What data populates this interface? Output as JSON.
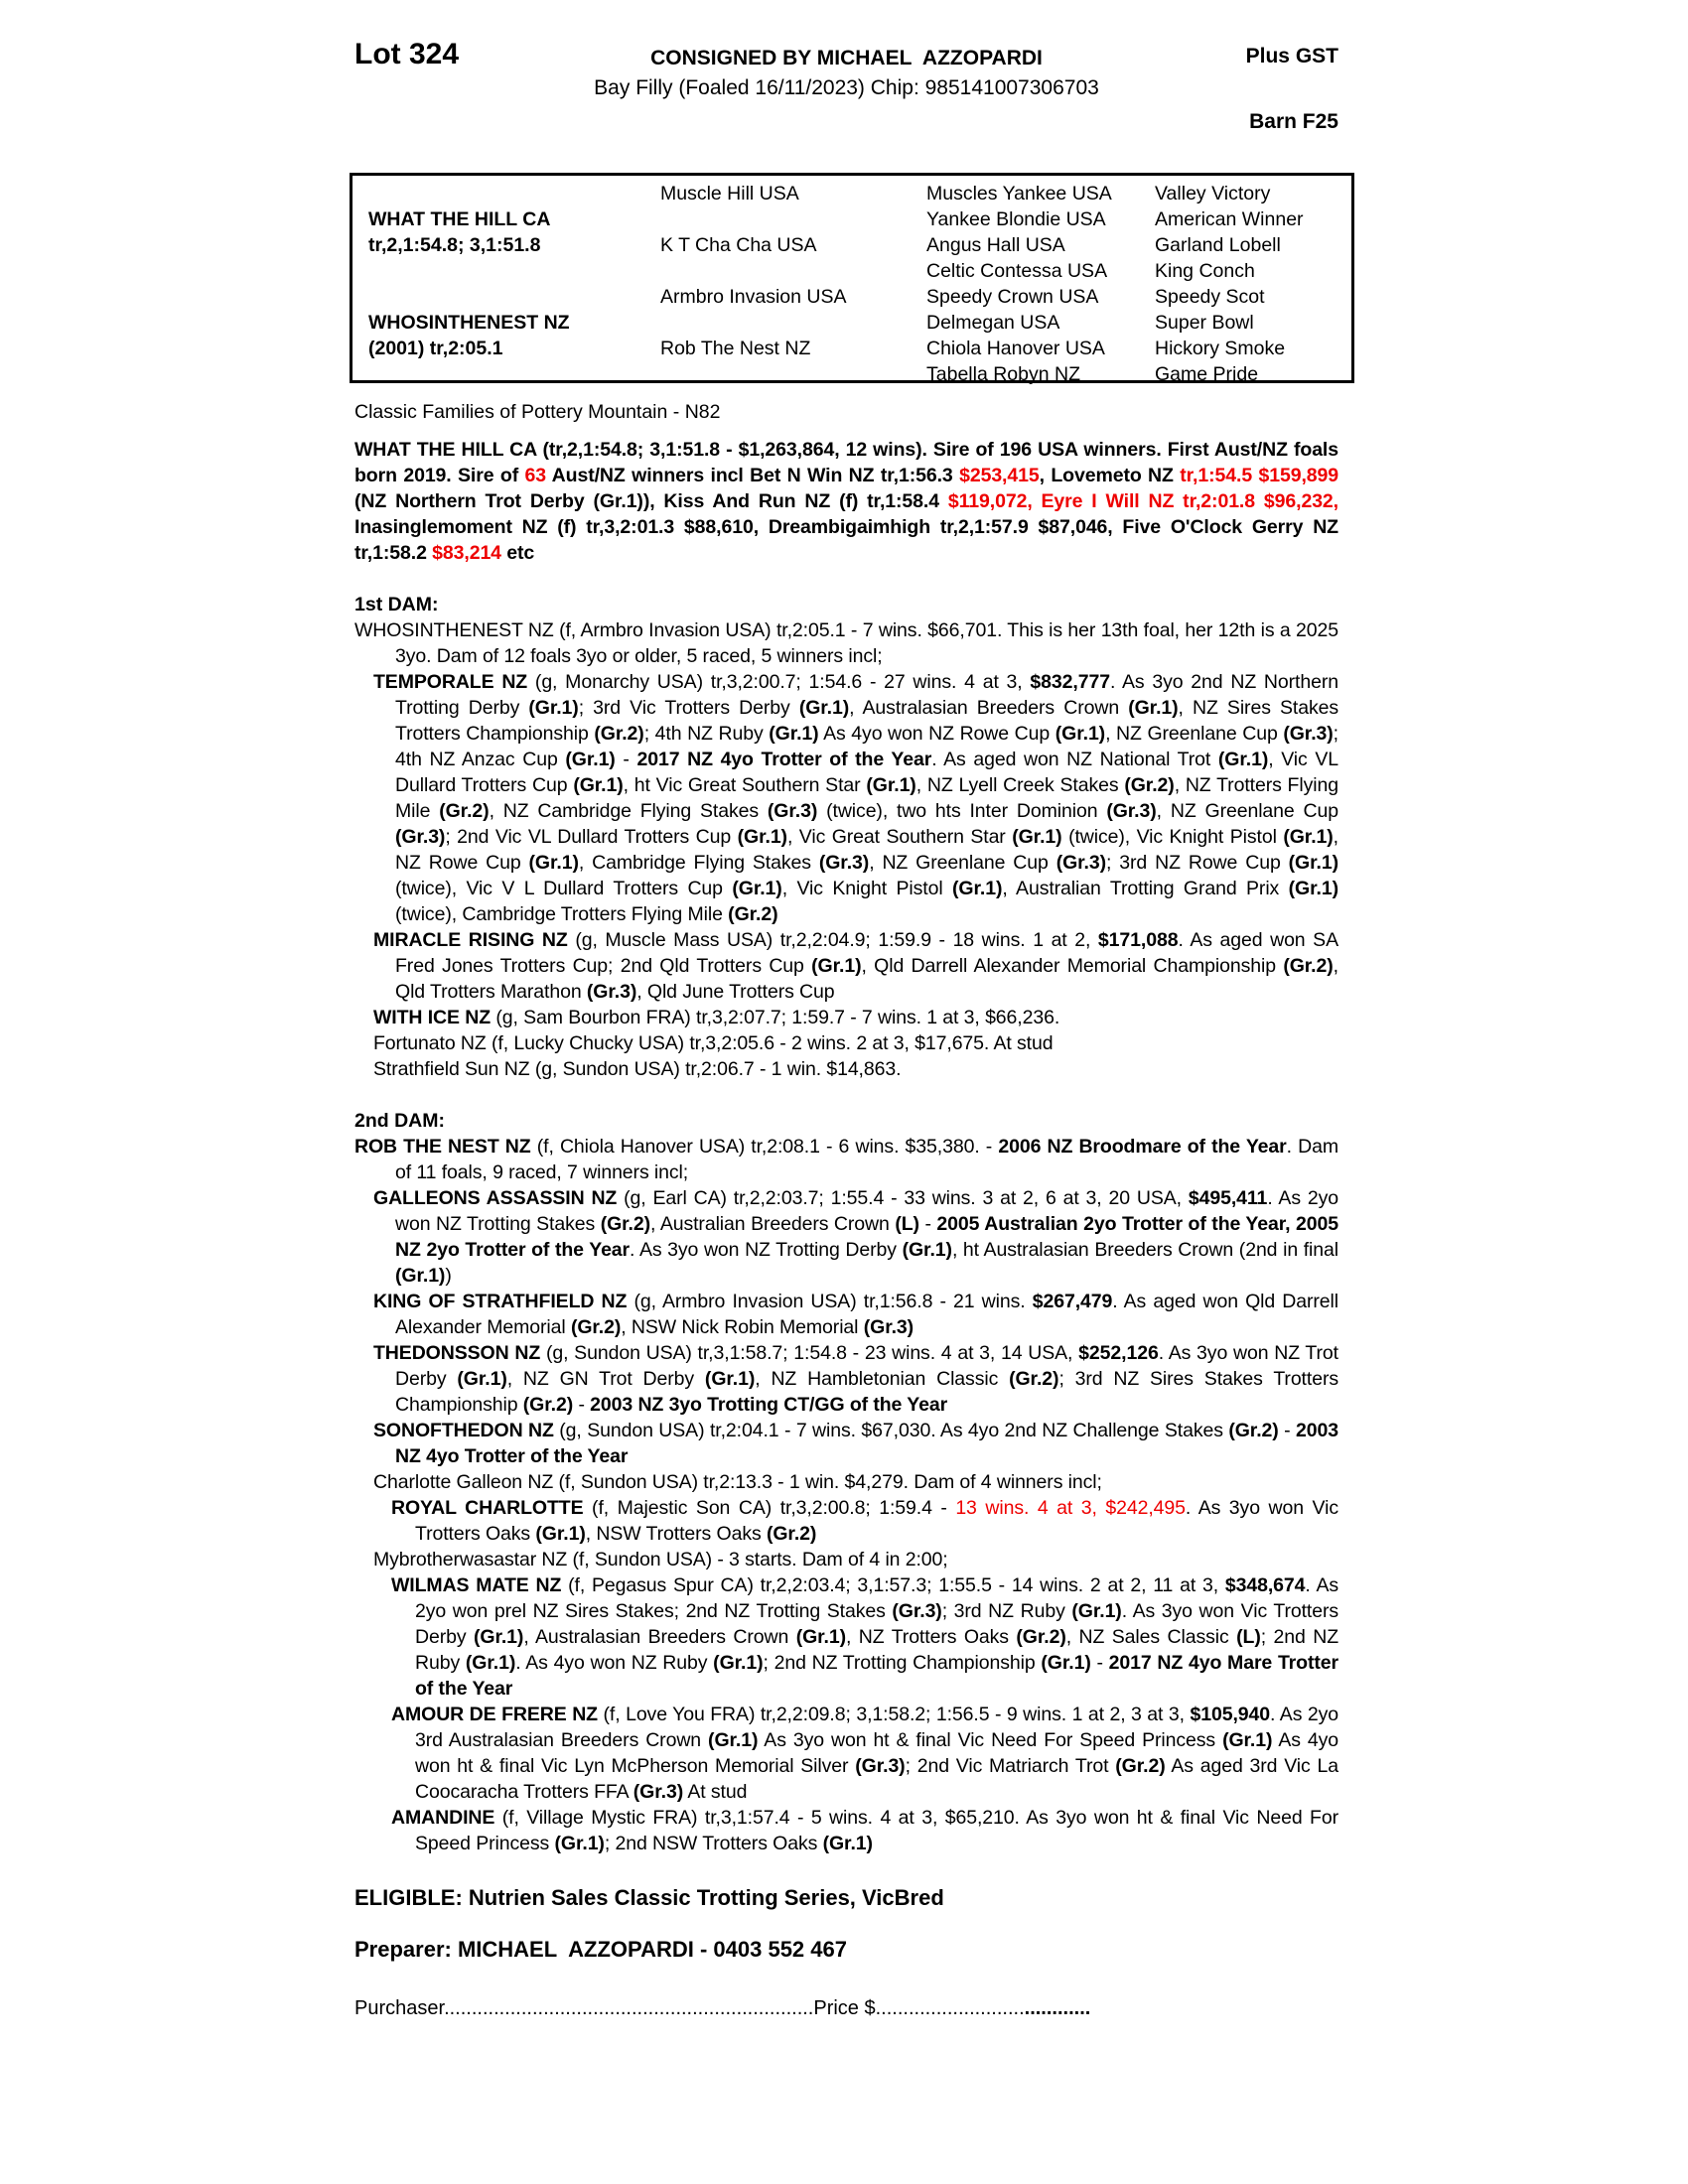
{
  "colors": {
    "accent_red": "#ee0000",
    "text_black": "#000000"
  },
  "header": {
    "lot": "Lot 324",
    "consigned": "CONSIGNED BY MICHAEL  AZZOPARDI",
    "plus_gst": "Plus GST",
    "subtitle": "Bay Filly (Foaled 16/11/2023) Chip: 985141007306703",
    "barn": "Barn F25"
  },
  "pedigree": {
    "sire": {
      "name": "WHAT THE HILL CA",
      "record": "tr,2,1:54.8; 3,1:51.8"
    },
    "dam": {
      "name": "WHOSINTHENEST NZ",
      "record": "(2001) tr,2:05.1"
    },
    "gen2": [
      "Muscle Hill USA",
      "K T Cha Cha USA",
      "Armbro Invasion USA",
      "Rob The Nest NZ"
    ],
    "gen3": [
      "Muscles Yankee USA",
      "Yankee Blondie USA",
      "Angus Hall USA",
      "Celtic Contessa USA",
      "Speedy Crown USA",
      "Delmegan USA",
      "Chiola Hanover USA",
      "Tabella Robyn NZ"
    ],
    "gen4": [
      "Valley Victory",
      "American Winner",
      "Garland Lobell",
      "King Conch",
      "Speedy Scot",
      "Super Bowl",
      "Hickory Smoke",
      "Game Pride"
    ]
  },
  "family_note": "Classic Families of Pottery Mountain - N82",
  "sire_summary": {
    "runs": [
      {
        "t": "WHAT THE HILL CA (tr,2,1:54.8; 3,1:51.8 - $1,263,864, 12 wins). Sire of 196 USA winners. First Aust/NZ foals born 2019. Sire of ",
        "s": "b"
      },
      {
        "t": "63",
        "s": "rb"
      },
      {
        "t": " Aust/NZ winners incl Bet N Win NZ tr,1:56.3 ",
        "s": "b"
      },
      {
        "t": "$253,415",
        "s": "rb"
      },
      {
        "t": ", Lovemeto NZ ",
        "s": "b"
      },
      {
        "t": "tr,1:54.5 $159,899",
        "s": "rb"
      },
      {
        "t": " (NZ Northern Trot Derby (Gr.1)), Kiss And Run NZ (f) tr,1:58.4 ",
        "s": "b"
      },
      {
        "t": "$119,072, Eyre I Will NZ tr,2:01.8 $96,232,",
        "s": "rb"
      },
      {
        "t": " Inasinglemoment NZ (f) tr,3,2:01.3 $88,610, Dreambigaimhigh tr,2,1:57.9 $87,046, Five O'Clock Gerry NZ tr,1:58.2 ",
        "s": "b"
      },
      {
        "t": "$83,214",
        "s": "rb"
      },
      {
        "t": " etc",
        "s": "b"
      }
    ]
  },
  "sections": [
    {
      "heading": "1st DAM:",
      "paragraphs": [
        {
          "ind": 0,
          "runs": [
            "WHOSINTHENEST NZ (f, Armbro Invasion USA) tr,2:05.1 - 7 wins. $66,701. This is her 13th foal, her 12th is a 2025 3yo. Dam of 12 foals 3yo or older, 5 raced, 5 winners incl;"
          ]
        },
        {
          "ind": 1,
          "runs": [
            {
              "t": "TEMPORALE NZ",
              "s": "b"
            },
            " (g, Monarchy USA) tr,3,2:00.7; 1:54.6 - 27 wins. 4 at 3, ",
            {
              "t": "$832,777",
              "s": "b"
            },
            ". As 3yo 2nd NZ Northern Trotting Derby ",
            {
              "t": "(Gr.1)",
              "s": "b"
            },
            "; 3rd Vic Trotters Derby ",
            {
              "t": "(Gr.1)",
              "s": "b"
            },
            ", Australasian Breeders Crown ",
            {
              "t": "(Gr.1)",
              "s": "b"
            },
            ", NZ Sires Stakes Trotters Championship ",
            {
              "t": "(Gr.2)",
              "s": "b"
            },
            "; 4th NZ Ruby ",
            {
              "t": "(Gr.1)",
              "s": "b"
            },
            " As 4yo won NZ Rowe Cup ",
            {
              "t": "(Gr.1)",
              "s": "b"
            },
            ", NZ Greenlane Cup ",
            {
              "t": "(Gr.3)",
              "s": "b"
            },
            "; 4th NZ Anzac Cup ",
            {
              "t": "(Gr.1)",
              "s": "b"
            },
            " - ",
            {
              "t": "2017 NZ 4yo Trotter of the Year",
              "s": "b"
            },
            ". As aged won NZ National Trot ",
            {
              "t": "(Gr.1)",
              "s": "b"
            },
            ", Vic VL Dullard Trotters Cup ",
            {
              "t": "(Gr.1)",
              "s": "b"
            },
            ", ht Vic Great Southern Star ",
            {
              "t": "(Gr.1)",
              "s": "b"
            },
            ", NZ Lyell Creek Stakes ",
            {
              "t": "(Gr.2)",
              "s": "b"
            },
            ", NZ Trotters Flying Mile ",
            {
              "t": "(Gr.2)",
              "s": "b"
            },
            ", NZ Cambridge Flying Stakes ",
            {
              "t": "(Gr.3)",
              "s": "b"
            },
            " (twice), two hts Inter Dominion ",
            {
              "t": "(Gr.3)",
              "s": "b"
            },
            ", NZ Greenlane Cup ",
            {
              "t": "(Gr.3)",
              "s": "b"
            },
            "; 2nd Vic VL Dullard Trotters Cup ",
            {
              "t": "(Gr.1)",
              "s": "b"
            },
            ", Vic Great Southern Star ",
            {
              "t": "(Gr.1)",
              "s": "b"
            },
            " (twice), Vic Knight Pistol ",
            {
              "t": "(Gr.1)",
              "s": "b"
            },
            ", NZ Rowe Cup ",
            {
              "t": "(Gr.1)",
              "s": "b"
            },
            ", Cambridge Flying Stakes ",
            {
              "t": "(Gr.3)",
              "s": "b"
            },
            ", NZ Greenlane Cup ",
            {
              "t": "(Gr.3)",
              "s": "b"
            },
            "; 3rd NZ Rowe Cup ",
            {
              "t": "(Gr.1)",
              "s": "b"
            },
            " (twice), Vic V L Dullard Trotters Cup ",
            {
              "t": "(Gr.1)",
              "s": "b"
            },
            ", Vic Knight Pistol ",
            {
              "t": "(Gr.1)",
              "s": "b"
            },
            ", Australian Trotting Grand Prix ",
            {
              "t": "(Gr.1)",
              "s": "b"
            },
            " (twice), Cambridge Trotters Flying Mile ",
            {
              "t": "(Gr.2)",
              "s": "b"
            }
          ]
        },
        {
          "ind": 1,
          "runs": [
            {
              "t": "MIRACLE RISING NZ",
              "s": "b"
            },
            " (g, Muscle Mass USA) tr,2,2:04.9; 1:59.9 - 18 wins. 1 at 2, ",
            {
              "t": "$171,088",
              "s": "b"
            },
            ". As aged won SA Fred Jones Trotters Cup; 2nd Qld Trotters Cup ",
            {
              "t": "(Gr.1)",
              "s": "b"
            },
            ", Qld Darrell Alexander Memorial Championship ",
            {
              "t": "(Gr.2)",
              "s": "b"
            },
            ", Qld Trotters Marathon ",
            {
              "t": "(Gr.3)",
              "s": "b"
            },
            ", Qld June Trotters Cup"
          ]
        },
        {
          "ind": 1,
          "runs": [
            {
              "t": "WITH ICE NZ",
              "s": "b"
            },
            " (g, Sam Bourbon FRA) tr,3,2:07.7; 1:59.7 - 7 wins. 1 at 3, $66,236."
          ]
        },
        {
          "ind": 1,
          "runs": [
            "Fortunato NZ (f, Lucky Chucky USA) tr,3,2:05.6 - 2 wins. 2 at 3, $17,675. At stud"
          ]
        },
        {
          "ind": 1,
          "runs": [
            "Strathfield Sun NZ (g, Sundon USA) tr,2:06.7 - 1 win. $14,863."
          ]
        }
      ]
    },
    {
      "heading": "2nd DAM:",
      "paragraphs": [
        {
          "ind": 0,
          "runs": [
            {
              "t": "ROB THE NEST NZ",
              "s": "b"
            },
            " (f, Chiola Hanover USA) tr,2:08.1 - 6 wins. $35,380. - ",
            {
              "t": "2006 NZ Broodmare of the Year",
              "s": "b"
            },
            ". Dam of 11 foals, 9 raced, 7 winners incl;"
          ]
        },
        {
          "ind": 1,
          "runs": [
            {
              "t": "GALLEONS ASSASSIN NZ",
              "s": "b"
            },
            " (g, Earl CA) tr,2,2:03.7; 1:55.4 - 33 wins. 3 at 2, 6 at 3, 20 USA, ",
            {
              "t": "$495,411",
              "s": "b"
            },
            ". As 2yo won NZ Trotting Stakes ",
            {
              "t": "(Gr.2)",
              "s": "b"
            },
            ", Australian Breeders Crown ",
            {
              "t": "(L)",
              "s": "b"
            },
            " - ",
            {
              "t": "2005 Australian 2yo Trotter of the Year, 2005 NZ 2yo Trotter of the Year",
              "s": "b"
            },
            ". As 3yo won NZ Trotting Derby ",
            {
              "t": "(Gr.1)",
              "s": "b"
            },
            ", ht Australasian Breeders Crown (2nd in final ",
            {
              "t": "(Gr.1)",
              "s": "b"
            },
            ")"
          ]
        },
        {
          "ind": 1,
          "runs": [
            {
              "t": "KING OF STRATHFIELD NZ",
              "s": "b"
            },
            " (g, Armbro Invasion USA) tr,1:56.8 - 21 wins. ",
            {
              "t": "$267,479",
              "s": "b"
            },
            ". As aged won Qld Darrell Alexander Memorial ",
            {
              "t": "(Gr.2)",
              "s": "b"
            },
            ", NSW Nick Robin Memorial ",
            {
              "t": "(Gr.3)",
              "s": "b"
            }
          ]
        },
        {
          "ind": 1,
          "runs": [
            {
              "t": "THEDONSSON NZ",
              "s": "b"
            },
            " (g, Sundon USA) tr,3,1:58.7; 1:54.8 - 23 wins. 4 at 3, 14 USA, ",
            {
              "t": "$252,126",
              "s": "b"
            },
            ". As 3yo won NZ Trot Derby ",
            {
              "t": "(Gr.1)",
              "s": "b"
            },
            ", NZ GN Trot Derby ",
            {
              "t": "(Gr.1)",
              "s": "b"
            },
            ", NZ Hambletonian Classic ",
            {
              "t": "(Gr.2)",
              "s": "b"
            },
            "; 3rd NZ Sires Stakes Trotters Championship ",
            {
              "t": "(Gr.2)",
              "s": "b"
            },
            " - ",
            {
              "t": "2003 NZ 3yo Trotting CT/GG of the Year",
              "s": "b"
            }
          ]
        },
        {
          "ind": 1,
          "runs": [
            {
              "t": "SONOFTHEDON NZ",
              "s": "b"
            },
            " (g, Sundon USA) tr,2:04.1 - 7 wins. $67,030. As 4yo 2nd NZ Challenge Stakes ",
            {
              "t": "(Gr.2)",
              "s": "b"
            },
            " - ",
            {
              "t": "2003 NZ 4yo Trotter of the Year",
              "s": "b"
            }
          ]
        },
        {
          "ind": 1,
          "runs": [
            "Charlotte Galleon NZ (f, Sundon USA) tr,2:13.3 - 1 win. $4,279. Dam of 4 winners incl;"
          ]
        },
        {
          "ind": 2,
          "runs": [
            {
              "t": "ROYAL CHARLOTTE",
              "s": "b"
            },
            " (f, Majestic Son CA) tr,3,2:00.8; 1:59.4 - ",
            {
              "t": "13 wins. 4 at 3, $242,495",
              "s": "r"
            },
            ". As 3yo won Vic Trotters Oaks ",
            {
              "t": "(Gr.1)",
              "s": "b"
            },
            ", NSW Trotters Oaks ",
            {
              "t": "(Gr.2)",
              "s": "b"
            }
          ]
        },
        {
          "ind": 1,
          "runs": [
            "Mybrotherwasastar NZ (f, Sundon USA) - 3 starts. Dam of 4 in 2:00;"
          ]
        },
        {
          "ind": 2,
          "runs": [
            {
              "t": "WILMAS MATE NZ",
              "s": "b"
            },
            " (f, Pegasus Spur CA) tr,2,2:03.4; 3,1:57.3; 1:55.5 - 14 wins. 2 at 2, 11 at 3, ",
            {
              "t": "$348,674",
              "s": "b"
            },
            ". As 2yo won prel NZ Sires Stakes; 2nd NZ Trotting Stakes ",
            {
              "t": "(Gr.3)",
              "s": "b"
            },
            "; 3rd NZ Ruby ",
            {
              "t": "(Gr.1)",
              "s": "b"
            },
            ". As 3yo won Vic Trotters Derby ",
            {
              "t": "(Gr.1)",
              "s": "b"
            },
            ", Australasian Breeders Crown ",
            {
              "t": "(Gr.1)",
              "s": "b"
            },
            ", NZ Trotters Oaks ",
            {
              "t": "(Gr.2)",
              "s": "b"
            },
            ", NZ Sales Classic ",
            {
              "t": "(L)",
              "s": "b"
            },
            "; 2nd NZ Ruby ",
            {
              "t": "(Gr.1)",
              "s": "b"
            },
            ". As 4yo won NZ Ruby ",
            {
              "t": "(Gr.1)",
              "s": "b"
            },
            "; 2nd NZ Trotting Championship ",
            {
              "t": "(Gr.1)",
              "s": "b"
            },
            " - ",
            {
              "t": "2017 NZ 4yo Mare Trotter of the Year",
              "s": "b"
            }
          ]
        },
        {
          "ind": 2,
          "runs": [
            {
              "t": "AMOUR DE FRERE NZ",
              "s": "b"
            },
            " (f, Love You FRA) tr,2,2:09.8; 3,1:58.2; 1:56.5 - 9 wins. 1 at 2, 3 at 3, ",
            {
              "t": "$105,940",
              "s": "b"
            },
            ". As 2yo 3rd Australasian Breeders Crown ",
            {
              "t": "(Gr.1)",
              "s": "b"
            },
            " As 3yo won ht & final Vic Need For Speed Princess ",
            {
              "t": "(Gr.1)",
              "s": "b"
            },
            " As 4yo won ht & final Vic Lyn McPherson Memorial Silver ",
            {
              "t": "(Gr.3)",
              "s": "b"
            },
            "; 2nd Vic Matriarch Trot ",
            {
              "t": "(Gr.2)",
              "s": "b"
            },
            " As aged 3rd Vic La Coocaracha Trotters FFA ",
            {
              "t": "(Gr.3)",
              "s": "b"
            },
            " At stud"
          ]
        },
        {
          "ind": 2,
          "runs": [
            {
              "t": "AMANDINE",
              "s": "b"
            },
            " (f, Village Mystic FRA) tr,3,1:57.4 - 5 wins. 4 at 3, $65,210. As 3yo won ht & final Vic Need For Speed Princess ",
            {
              "t": "(Gr.1)",
              "s": "b"
            },
            "; 2nd NSW Trotters Oaks ",
            {
              "t": "(Gr.1)",
              "s": "b"
            }
          ]
        }
      ]
    }
  ],
  "eligible": "ELIGIBLE: Nutrien Sales Classic Trotting Series, VicBred",
  "preparer": "Preparer: MICHAEL  AZZOPARDI - 0403 552 467",
  "purchaser_line": {
    "label": "Purchaser",
    "dots": "...................................................................",
    "price_label": "Price $",
    "dots2": "...........................",
    "dots2_bold": "............"
  }
}
